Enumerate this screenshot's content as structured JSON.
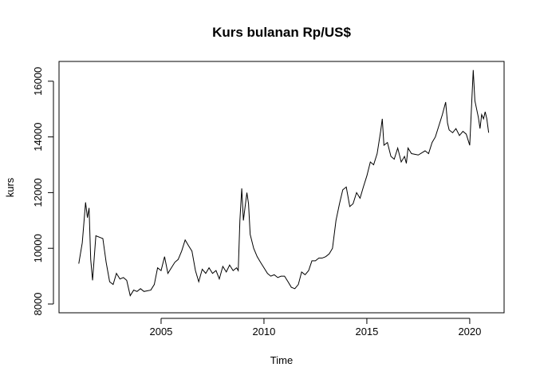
{
  "chart_data": {
    "type": "line",
    "title": "Kurs bulanan Rp/US$",
    "x_label": "Time",
    "y_label": "kurs",
    "x": [
      2001.0,
      2001.17,
      2001.33,
      2001.42,
      2001.5,
      2001.58,
      2001.67,
      2001.83,
      2002.17,
      2002.33,
      2002.5,
      2002.67,
      2002.83,
      2003.0,
      2003.17,
      2003.33,
      2003.5,
      2003.67,
      2003.83,
      2004.0,
      2004.17,
      2004.5,
      2004.67,
      2004.83,
      2005.0,
      2005.17,
      2005.33,
      2005.5,
      2005.67,
      2005.83,
      2006.0,
      2006.17,
      2006.33,
      2006.5,
      2006.67,
      2006.83,
      2007.0,
      2007.17,
      2007.33,
      2007.5,
      2007.67,
      2007.83,
      2008.0,
      2008.17,
      2008.33,
      2008.5,
      2008.67,
      2008.75,
      2008.83,
      2008.92,
      2009.0,
      2009.17,
      2009.25,
      2009.33,
      2009.5,
      2009.67,
      2009.83,
      2010.0,
      2010.17,
      2010.33,
      2010.5,
      2010.67,
      2010.83,
      2011.0,
      2011.17,
      2011.33,
      2011.5,
      2011.67,
      2011.83,
      2012.0,
      2012.17,
      2012.33,
      2012.5,
      2012.67,
      2012.83,
      2013.0,
      2013.17,
      2013.33,
      2013.5,
      2013.67,
      2013.83,
      2014.0,
      2014.17,
      2014.33,
      2014.5,
      2014.67,
      2014.83,
      2015.0,
      2015.17,
      2015.33,
      2015.5,
      2015.67,
      2015.75,
      2015.83,
      2016.0,
      2016.17,
      2016.33,
      2016.5,
      2016.67,
      2016.83,
      2016.92,
      2017.0,
      2017.17,
      2017.5,
      2017.83,
      2018.0,
      2018.17,
      2018.33,
      2018.5,
      2018.67,
      2018.83,
      2018.92,
      2019.0,
      2019.17,
      2019.33,
      2019.5,
      2019.67,
      2019.83,
      2020.0,
      2020.17,
      2020.25,
      2020.42,
      2020.5,
      2020.58,
      2020.67,
      2020.75,
      2020.83,
      2020.92
    ],
    "series": [
      {
        "name": "kurs",
        "color": "#000000",
        "values": [
          9450,
          10200,
          11650,
          11100,
          11450,
          9600,
          8850,
          10450,
          10350,
          9500,
          8800,
          8700,
          9100,
          8900,
          8950,
          8850,
          8300,
          8500,
          8450,
          8550,
          8450,
          8500,
          8700,
          9300,
          9200,
          9700,
          9100,
          9300,
          9500,
          9600,
          9900,
          10300,
          10100,
          9900,
          9200,
          8800,
          9250,
          9100,
          9300,
          9100,
          9200,
          8900,
          9350,
          9150,
          9400,
          9200,
          9300,
          9200,
          11000,
          12150,
          11000,
          12000,
          11600,
          10500,
          10000,
          9700,
          9500,
          9300,
          9100,
          9000,
          9050,
          8950,
          9000,
          9000,
          8800,
          8600,
          8550,
          8700,
          9150,
          9050,
          9200,
          9550,
          9550,
          9650,
          9650,
          9700,
          9800,
          10000,
          11000,
          11600,
          12100,
          12200,
          11500,
          11600,
          12000,
          11800,
          12200,
          12600,
          13100,
          13000,
          13400,
          14200,
          14650,
          13700,
          13800,
          13300,
          13200,
          13600,
          13100,
          13300,
          13050,
          13600,
          13400,
          13350,
          13500,
          13400,
          13800,
          14000,
          14400,
          14800,
          15250,
          14500,
          14250,
          14150,
          14300,
          14050,
          14200,
          14100,
          13700,
          16400,
          15300,
          14700,
          14300,
          14800,
          14650,
          14900,
          14650,
          14150
        ]
      }
    ],
    "xlim": [
      2000.04,
      2021.67
    ],
    "ylim": [
      7685,
      16710
    ],
    "xticks": [
      2005,
      2010,
      2015,
      2020
    ],
    "yticks": [
      8000,
      10000,
      12000,
      14000,
      16000
    ],
    "grid": false
  }
}
